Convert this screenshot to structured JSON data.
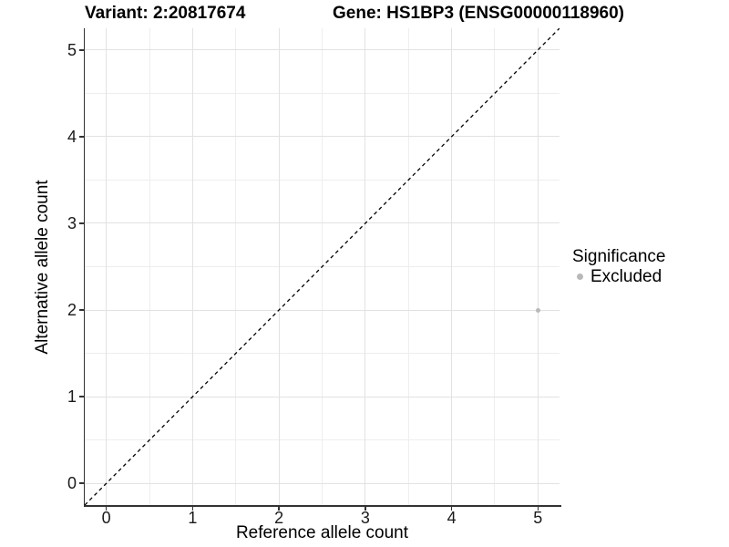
{
  "header": {
    "variant_title": "Variant: 2:20817674",
    "gene_title": "Gene: HS1BP3 (ENSG00000118960)"
  },
  "chart_data": {
    "type": "scatter",
    "xlabel": "Reference allele count",
    "ylabel": "Alternative allele count",
    "xlim": [
      -0.25,
      5.25
    ],
    "ylim": [
      -0.25,
      5.25
    ],
    "x_ticks": [
      0,
      1,
      2,
      3,
      4,
      5
    ],
    "y_ticks": [
      0,
      1,
      2,
      3,
      4,
      5
    ],
    "x_minor_ticks": [
      0.5,
      1.5,
      2.5,
      3.5,
      4.5
    ],
    "y_minor_ticks": [
      0.5,
      1.5,
      2.5,
      3.5,
      4.5
    ],
    "grid": "major+minor on white panel",
    "points": [
      {
        "x": 5,
        "y": 2,
        "significance": "Excluded"
      }
    ],
    "reference_line": {
      "type": "identity",
      "style": "dashed",
      "from": [
        -0.25,
        -0.25
      ],
      "to": [
        5.25,
        5.25
      ]
    },
    "legend": {
      "title": "Significance",
      "position": "right",
      "items": [
        {
          "label": "Excluded",
          "color": "#b9b9b9"
        }
      ]
    }
  },
  "colors": {
    "background": "#ffffff",
    "grid_major": "#e2e2e2",
    "grid_minor": "#eeeeee",
    "axis_line": "#333333",
    "tick_text": "#1a1a1a",
    "title_text": "#000000",
    "point": "#b9b9b9",
    "reference_line": "#000000"
  }
}
